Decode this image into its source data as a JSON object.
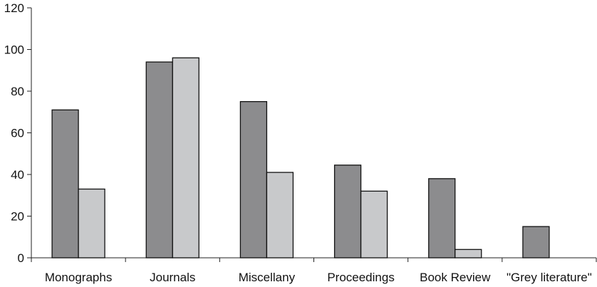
{
  "chart_data": {
    "type": "bar",
    "title": "",
    "xlabel": "",
    "ylabel": "",
    "categories": [
      "Monographs",
      "Journals",
      "Miscellany",
      "Proceedings",
      "Book Review",
      "\"Grey literature\""
    ],
    "series": [
      {
        "values": [
          71,
          94,
          75,
          44.5,
          38,
          15
        ],
        "color": "#8c8c8e"
      },
      {
        "values": [
          33,
          96,
          41,
          32,
          4,
          null
        ],
        "color": "#c8c9cb"
      }
    ],
    "ylim": [
      0,
      120
    ],
    "yticks": [
      0,
      20,
      40,
      60,
      80,
      100,
      120
    ],
    "grid": false,
    "legend": "none"
  }
}
